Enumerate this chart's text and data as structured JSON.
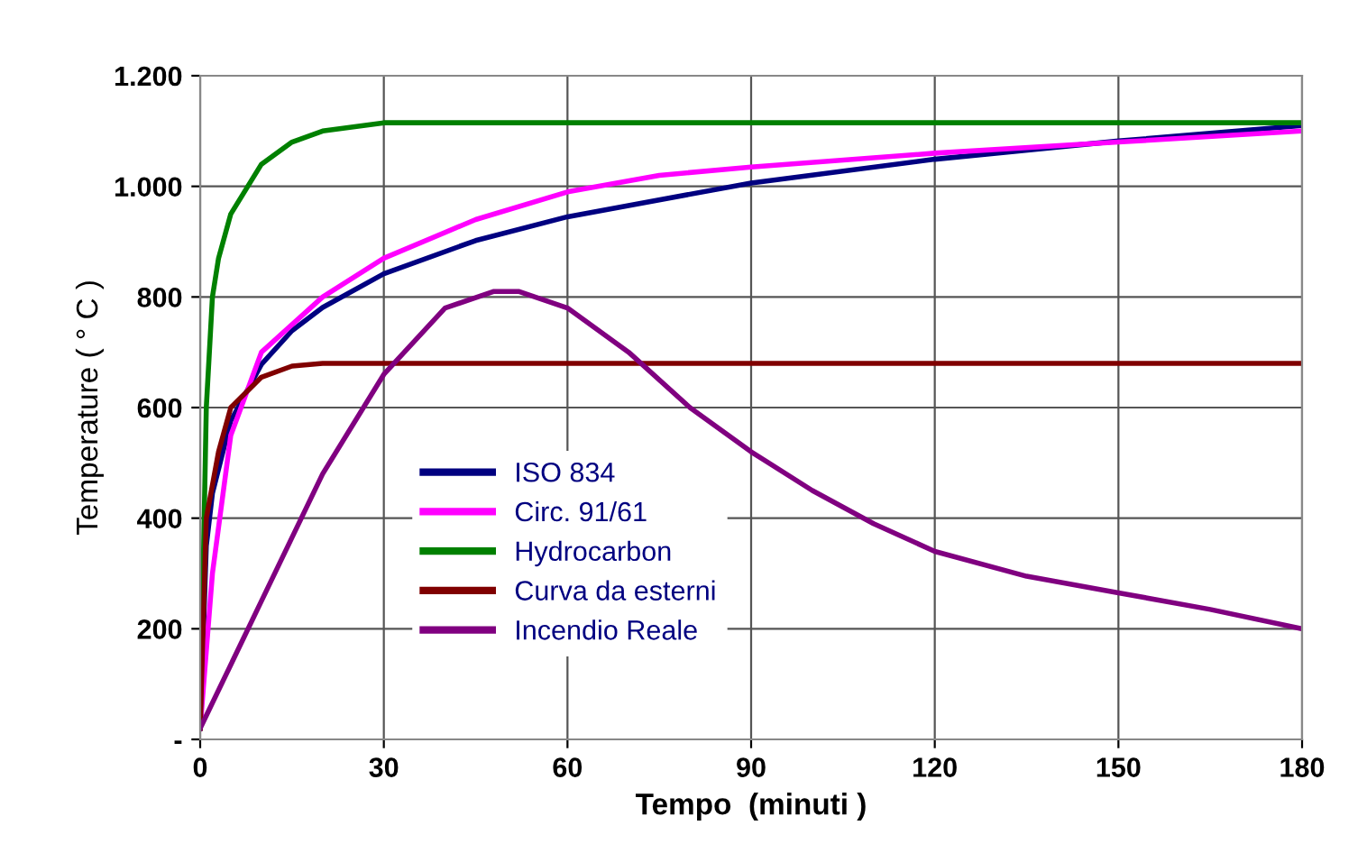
{
  "chart_data": {
    "type": "line",
    "xlabel": "Tempo  (minuti )",
    "ylabel": "Temperature ( ° C )",
    "xlim": [
      0,
      180
    ],
    "xticks": [
      0,
      30,
      60,
      90,
      120,
      150,
      180
    ],
    "ylim": [
      0,
      1200
    ],
    "yticks": [
      {
        "value": 0,
        "label": "-"
      },
      200,
      400,
      600,
      800,
      {
        "value": 1000,
        "label": "1.000"
      },
      {
        "value": 1200,
        "label": "1.200"
      }
    ],
    "grid": true,
    "legend": "left",
    "marker": "none",
    "line_style": "solid",
    "series": [
      {
        "name": "ISO 834",
        "color": "#000080",
        "x": [
          0,
          1,
          2,
          5,
          10,
          15,
          20,
          30,
          45,
          60,
          90,
          120,
          150,
          180
        ],
        "values": [
          20,
          350,
          445,
          576,
          678,
          739,
          781,
          842,
          902,
          945,
          1006,
          1049,
          1082,
          1110
        ]
      },
      {
        "name": "Circ. 91/61",
        "color": "#ff00ff",
        "x": [
          0,
          2,
          5,
          10,
          20,
          30,
          45,
          60,
          75,
          90,
          120,
          150,
          180
        ],
        "values": [
          20,
          300,
          550,
          700,
          800,
          870,
          940,
          990,
          1020,
          1035,
          1060,
          1080,
          1100
        ]
      },
      {
        "name": "Hydrocarbon",
        "color": "#008000",
        "x": [
          0,
          1,
          2,
          3,
          5,
          10,
          15,
          20,
          30,
          180
        ],
        "values": [
          20,
          600,
          800,
          870,
          950,
          1040,
          1080,
          1100,
          1115,
          1115
        ]
      },
      {
        "name": "Curva da esterni",
        "color": "#800000",
        "x": [
          0,
          1,
          3,
          5,
          10,
          15,
          20,
          180
        ],
        "values": [
          20,
          400,
          520,
          600,
          655,
          675,
          680,
          680
        ]
      },
      {
        "name": "Incendio Reale",
        "color": "#800080",
        "x": [
          0,
          10,
          20,
          30,
          40,
          48,
          52,
          60,
          70,
          80,
          90,
          100,
          110,
          120,
          135,
          150,
          165,
          180
        ],
        "values": [
          20,
          250,
          480,
          660,
          780,
          810,
          810,
          780,
          700,
          600,
          520,
          450,
          390,
          340,
          295,
          265,
          235,
          200
        ]
      }
    ]
  }
}
